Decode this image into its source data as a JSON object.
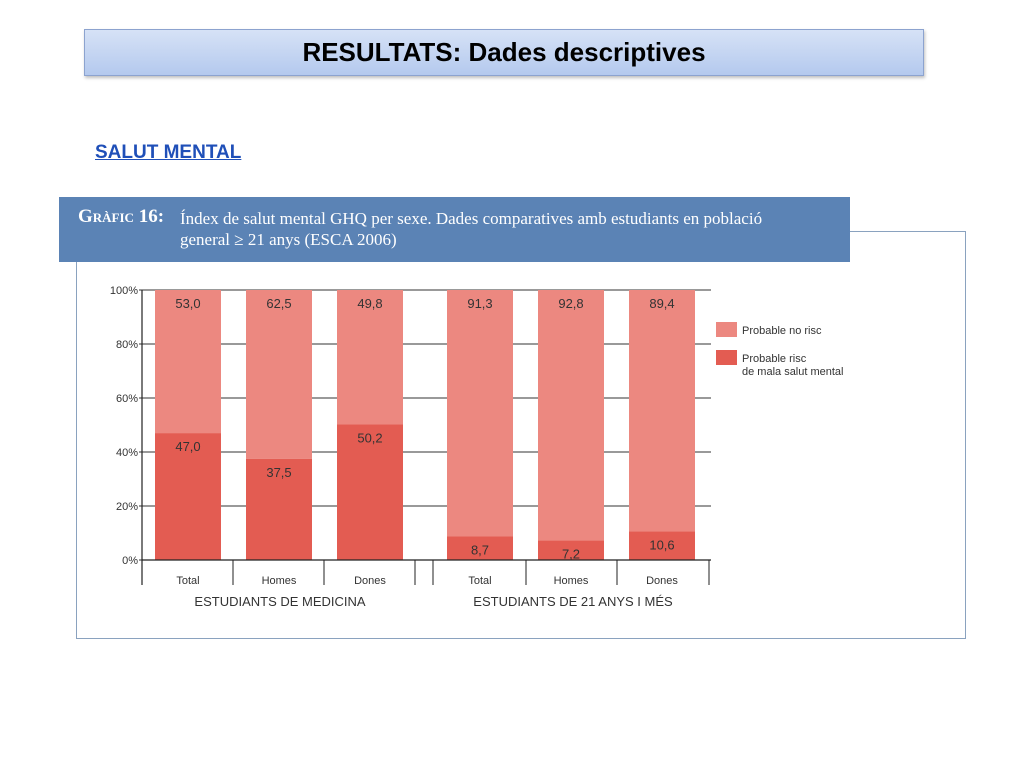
{
  "slide": {
    "title": "RESULTATS: Dades descriptives",
    "section_link": "SALUT MENTAL"
  },
  "chart_header": {
    "label": "Gràfic 16:",
    "line1": "Índex de salut mental GHQ per sexe. Dades comparatives amb estudiants en població",
    "line2": "general ≥ 21 anys (ESCA 2006)"
  },
  "chart_data": {
    "type": "bar",
    "stacked": true,
    "percent_stacked": true,
    "categories": [
      "Total",
      "Homes",
      "Dones",
      "Total",
      "Homes",
      "Dones"
    ],
    "groups": [
      {
        "label": "ESTUDIANTS DE MEDICINA",
        "categories": [
          0,
          1,
          2
        ]
      },
      {
        "label": "ESTUDIANTS DE 21 ANYS I MÉS",
        "categories": [
          3,
          4,
          5
        ]
      }
    ],
    "series": [
      {
        "name": "Probable risc de mala salut mental",
        "values": [
          47.0,
          37.5,
          50.2,
          8.7,
          7.2,
          10.6
        ],
        "labels": [
          "47,0",
          "37,5",
          "50,2",
          "8,7",
          "7,2",
          "10,6"
        ],
        "color": "#e35c52"
      },
      {
        "name": "Probable no risc",
        "values": [
          53.0,
          62.5,
          49.8,
          91.3,
          92.8,
          89.4
        ],
        "labels": [
          "53,0",
          "62,5",
          "49,8",
          "91,3",
          "92,8",
          "89,4"
        ],
        "color": "#ec8880"
      }
    ],
    "legend": [
      {
        "lines": [
          "Probable no risc"
        ],
        "color": "#ec8880"
      },
      {
        "lines": [
          "Probable risc",
          "de mala salut mental"
        ],
        "color": "#e35c52"
      }
    ],
    "yticks": [
      "0%",
      "20%",
      "40%",
      "60%",
      "80%",
      "100%"
    ],
    "ylim": [
      0,
      100
    ],
    "grid": true,
    "legend_position": "right"
  }
}
